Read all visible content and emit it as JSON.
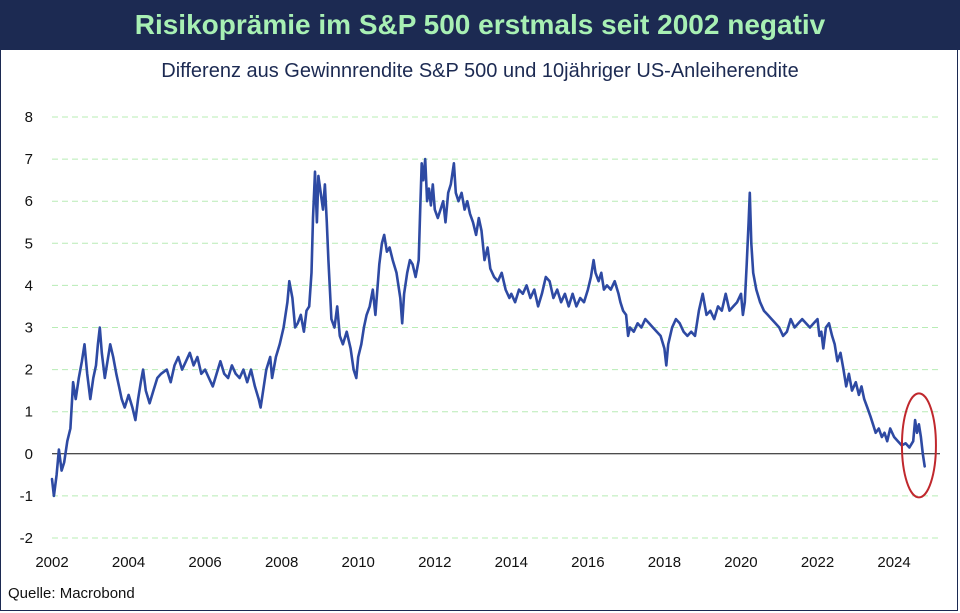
{
  "chart_data": {
    "type": "line",
    "title": "Risikoprämie im S&P 500 erstmals seit 2002 negativ",
    "subtitle": "Differenz aus Gewinnrendite S&P 500 und 10jähriger US-Anleiherendite",
    "source": "Quelle: Macrobond",
    "xlim": [
      2002,
      2025.2
    ],
    "ylim": [
      -2,
      8
    ],
    "x_ticks": [
      2002,
      2004,
      2006,
      2008,
      2010,
      2012,
      2014,
      2016,
      2018,
      2020,
      2022,
      2024
    ],
    "y_ticks": [
      -2,
      -1,
      0,
      1,
      2,
      3,
      4,
      5,
      6,
      7,
      8
    ],
    "grid": "horizontal dashed",
    "zero_line": true,
    "series": [
      {
        "color": "#2e4aa3",
        "points": [
          [
            2002.0,
            -0.6
          ],
          [
            2002.05,
            -1.0
          ],
          [
            2002.12,
            -0.5
          ],
          [
            2002.18,
            0.1
          ],
          [
            2002.25,
            -0.4
          ],
          [
            2002.32,
            -0.2
          ],
          [
            2002.4,
            0.3
          ],
          [
            2002.48,
            0.6
          ],
          [
            2002.55,
            1.7
          ],
          [
            2002.62,
            1.3
          ],
          [
            2002.7,
            1.8
          ],
          [
            2002.78,
            2.2
          ],
          [
            2002.85,
            2.6
          ],
          [
            2002.92,
            1.9
          ],
          [
            2003.0,
            1.3
          ],
          [
            2003.08,
            1.8
          ],
          [
            2003.15,
            2.1
          ],
          [
            2003.2,
            2.6
          ],
          [
            2003.25,
            3.0
          ],
          [
            2003.3,
            2.4
          ],
          [
            2003.38,
            1.8
          ],
          [
            2003.45,
            2.2
          ],
          [
            2003.52,
            2.6
          ],
          [
            2003.6,
            2.3
          ],
          [
            2003.68,
            1.9
          ],
          [
            2003.75,
            1.6
          ],
          [
            2003.82,
            1.3
          ],
          [
            2003.9,
            1.1
          ],
          [
            2004.0,
            1.4
          ],
          [
            2004.1,
            1.1
          ],
          [
            2004.18,
            0.8
          ],
          [
            2004.25,
            1.3
          ],
          [
            2004.32,
            1.7
          ],
          [
            2004.38,
            2.0
          ],
          [
            2004.45,
            1.5
          ],
          [
            2004.55,
            1.2
          ],
          [
            2004.65,
            1.5
          ],
          [
            2004.75,
            1.8
          ],
          [
            2004.85,
            1.9
          ],
          [
            2005.0,
            2.0
          ],
          [
            2005.1,
            1.7
          ],
          [
            2005.2,
            2.1
          ],
          [
            2005.3,
            2.3
          ],
          [
            2005.4,
            2.0
          ],
          [
            2005.5,
            2.2
          ],
          [
            2005.6,
            2.4
          ],
          [
            2005.7,
            2.1
          ],
          [
            2005.8,
            2.3
          ],
          [
            2005.9,
            1.9
          ],
          [
            2006.0,
            2.0
          ],
          [
            2006.1,
            1.8
          ],
          [
            2006.2,
            1.6
          ],
          [
            2006.3,
            1.9
          ],
          [
            2006.4,
            2.2
          ],
          [
            2006.5,
            1.9
          ],
          [
            2006.6,
            1.8
          ],
          [
            2006.7,
            2.1
          ],
          [
            2006.8,
            1.9
          ],
          [
            2006.9,
            1.8
          ],
          [
            2007.0,
            2.0
          ],
          [
            2007.1,
            1.7
          ],
          [
            2007.2,
            2.0
          ],
          [
            2007.3,
            1.6
          ],
          [
            2007.4,
            1.3
          ],
          [
            2007.45,
            1.1
          ],
          [
            2007.5,
            1.4
          ],
          [
            2007.6,
            2.0
          ],
          [
            2007.7,
            2.3
          ],
          [
            2007.75,
            1.8
          ],
          [
            2007.85,
            2.3
          ],
          [
            2007.95,
            2.6
          ],
          [
            2008.05,
            3.0
          ],
          [
            2008.15,
            3.6
          ],
          [
            2008.2,
            4.1
          ],
          [
            2008.28,
            3.7
          ],
          [
            2008.35,
            3.0
          ],
          [
            2008.42,
            3.1
          ],
          [
            2008.5,
            3.3
          ],
          [
            2008.58,
            2.9
          ],
          [
            2008.65,
            3.4
          ],
          [
            2008.72,
            3.5
          ],
          [
            2008.78,
            4.3
          ],
          [
            2008.82,
            5.6
          ],
          [
            2008.87,
            6.7
          ],
          [
            2008.92,
            5.5
          ],
          [
            2008.96,
            6.6
          ],
          [
            2009.02,
            6.2
          ],
          [
            2009.08,
            5.8
          ],
          [
            2009.13,
            6.4
          ],
          [
            2009.18,
            5.5
          ],
          [
            2009.22,
            4.6
          ],
          [
            2009.3,
            3.2
          ],
          [
            2009.38,
            3.0
          ],
          [
            2009.45,
            3.5
          ],
          [
            2009.52,
            2.8
          ],
          [
            2009.6,
            2.6
          ],
          [
            2009.7,
            2.9
          ],
          [
            2009.8,
            2.5
          ],
          [
            2009.88,
            2.0
          ],
          [
            2009.95,
            1.8
          ],
          [
            2010.0,
            2.3
          ],
          [
            2010.08,
            2.6
          ],
          [
            2010.15,
            3.0
          ],
          [
            2010.22,
            3.3
          ],
          [
            2010.3,
            3.5
          ],
          [
            2010.38,
            3.9
          ],
          [
            2010.45,
            3.3
          ],
          [
            2010.55,
            4.5
          ],
          [
            2010.62,
            5.0
          ],
          [
            2010.68,
            5.2
          ],
          [
            2010.75,
            4.8
          ],
          [
            2010.82,
            4.9
          ],
          [
            2010.9,
            4.6
          ],
          [
            2011.0,
            4.3
          ],
          [
            2011.1,
            3.7
          ],
          [
            2011.15,
            3.1
          ],
          [
            2011.2,
            3.8
          ],
          [
            2011.28,
            4.3
          ],
          [
            2011.35,
            4.6
          ],
          [
            2011.42,
            4.5
          ],
          [
            2011.5,
            4.2
          ],
          [
            2011.58,
            4.6
          ],
          [
            2011.62,
            5.8
          ],
          [
            2011.66,
            6.9
          ],
          [
            2011.7,
            6.5
          ],
          [
            2011.75,
            7.0
          ],
          [
            2011.8,
            6.0
          ],
          [
            2011.85,
            6.3
          ],
          [
            2011.9,
            5.9
          ],
          [
            2011.95,
            6.4
          ],
          [
            2012.0,
            5.8
          ],
          [
            2012.08,
            5.6
          ],
          [
            2012.15,
            5.8
          ],
          [
            2012.22,
            6.0
          ],
          [
            2012.28,
            5.5
          ],
          [
            2012.35,
            6.2
          ],
          [
            2012.42,
            6.4
          ],
          [
            2012.5,
            6.9
          ],
          [
            2012.55,
            6.2
          ],
          [
            2012.62,
            6.0
          ],
          [
            2012.7,
            6.2
          ],
          [
            2012.78,
            5.8
          ],
          [
            2012.85,
            6.0
          ],
          [
            2012.92,
            5.7
          ],
          [
            2013.0,
            5.5
          ],
          [
            2013.08,
            5.2
          ],
          [
            2013.15,
            5.6
          ],
          [
            2013.22,
            5.3
          ],
          [
            2013.3,
            4.6
          ],
          [
            2013.38,
            4.9
          ],
          [
            2013.45,
            4.4
          ],
          [
            2013.55,
            4.2
          ],
          [
            2013.65,
            4.1
          ],
          [
            2013.75,
            4.3
          ],
          [
            2013.85,
            3.9
          ],
          [
            2013.95,
            3.7
          ],
          [
            2014.0,
            3.8
          ],
          [
            2014.1,
            3.6
          ],
          [
            2014.2,
            3.9
          ],
          [
            2014.3,
            3.8
          ],
          [
            2014.4,
            4.0
          ],
          [
            2014.5,
            3.7
          ],
          [
            2014.6,
            3.9
          ],
          [
            2014.7,
            3.5
          ],
          [
            2014.8,
            3.8
          ],
          [
            2014.9,
            4.2
          ],
          [
            2015.0,
            4.1
          ],
          [
            2015.1,
            3.7
          ],
          [
            2015.2,
            3.9
          ],
          [
            2015.3,
            3.6
          ],
          [
            2015.4,
            3.8
          ],
          [
            2015.5,
            3.5
          ],
          [
            2015.6,
            3.8
          ],
          [
            2015.7,
            3.5
          ],
          [
            2015.8,
            3.7
          ],
          [
            2015.9,
            3.6
          ],
          [
            2016.0,
            3.9
          ],
          [
            2016.08,
            4.2
          ],
          [
            2016.15,
            4.6
          ],
          [
            2016.2,
            4.3
          ],
          [
            2016.28,
            4.1
          ],
          [
            2016.35,
            4.3
          ],
          [
            2016.42,
            3.9
          ],
          [
            2016.5,
            4.0
          ],
          [
            2016.6,
            3.9
          ],
          [
            2016.7,
            4.1
          ],
          [
            2016.8,
            3.8
          ],
          [
            2016.85,
            3.6
          ],
          [
            2016.92,
            3.4
          ],
          [
            2017.0,
            3.3
          ],
          [
            2017.05,
            2.8
          ],
          [
            2017.1,
            3.0
          ],
          [
            2017.2,
            2.9
          ],
          [
            2017.3,
            3.1
          ],
          [
            2017.4,
            3.0
          ],
          [
            2017.5,
            3.2
          ],
          [
            2017.6,
            3.1
          ],
          [
            2017.7,
            3.0
          ],
          [
            2017.8,
            2.9
          ],
          [
            2017.9,
            2.8
          ],
          [
            2018.0,
            2.5
          ],
          [
            2018.05,
            2.1
          ],
          [
            2018.1,
            2.6
          ],
          [
            2018.2,
            3.0
          ],
          [
            2018.3,
            3.2
          ],
          [
            2018.4,
            3.1
          ],
          [
            2018.5,
            2.9
          ],
          [
            2018.6,
            2.8
          ],
          [
            2018.7,
            2.9
          ],
          [
            2018.8,
            2.8
          ],
          [
            2018.9,
            3.4
          ],
          [
            2019.0,
            3.8
          ],
          [
            2019.1,
            3.3
          ],
          [
            2019.2,
            3.4
          ],
          [
            2019.3,
            3.2
          ],
          [
            2019.4,
            3.5
          ],
          [
            2019.5,
            3.4
          ],
          [
            2019.6,
            3.8
          ],
          [
            2019.65,
            3.6
          ],
          [
            2019.7,
            3.4
          ],
          [
            2019.8,
            3.5
          ],
          [
            2019.9,
            3.6
          ],
          [
            2020.0,
            3.8
          ],
          [
            2020.05,
            3.3
          ],
          [
            2020.1,
            3.6
          ],
          [
            2020.15,
            4.5
          ],
          [
            2020.2,
            5.5
          ],
          [
            2020.23,
            6.2
          ],
          [
            2020.27,
            5.0
          ],
          [
            2020.32,
            4.3
          ],
          [
            2020.4,
            3.9
          ],
          [
            2020.5,
            3.6
          ],
          [
            2020.6,
            3.4
          ],
          [
            2020.7,
            3.3
          ],
          [
            2020.8,
            3.2
          ],
          [
            2020.9,
            3.1
          ],
          [
            2021.0,
            3.0
          ],
          [
            2021.1,
            2.8
          ],
          [
            2021.2,
            2.9
          ],
          [
            2021.3,
            3.2
          ],
          [
            2021.4,
            3.0
          ],
          [
            2021.5,
            3.1
          ],
          [
            2021.6,
            3.2
          ],
          [
            2021.7,
            3.1
          ],
          [
            2021.8,
            3.0
          ],
          [
            2021.9,
            3.1
          ],
          [
            2022.0,
            3.2
          ],
          [
            2022.05,
            2.8
          ],
          [
            2022.1,
            2.9
          ],
          [
            2022.15,
            2.5
          ],
          [
            2022.22,
            3.0
          ],
          [
            2022.3,
            3.1
          ],
          [
            2022.38,
            2.8
          ],
          [
            2022.45,
            2.6
          ],
          [
            2022.52,
            2.2
          ],
          [
            2022.6,
            2.4
          ],
          [
            2022.68,
            2.0
          ],
          [
            2022.75,
            1.6
          ],
          [
            2022.82,
            1.9
          ],
          [
            2022.9,
            1.5
          ],
          [
            2023.0,
            1.7
          ],
          [
            2023.08,
            1.4
          ],
          [
            2023.15,
            1.6
          ],
          [
            2023.22,
            1.3
          ],
          [
            2023.3,
            1.1
          ],
          [
            2023.38,
            0.9
          ],
          [
            2023.45,
            0.7
          ],
          [
            2023.52,
            0.5
          ],
          [
            2023.6,
            0.6
          ],
          [
            2023.68,
            0.4
          ],
          [
            2023.75,
            0.5
          ],
          [
            2023.82,
            0.3
          ],
          [
            2023.9,
            0.6
          ],
          [
            2024.0,
            0.4
          ],
          [
            2024.1,
            0.3
          ],
          [
            2024.2,
            0.2
          ],
          [
            2024.3,
            0.25
          ],
          [
            2024.4,
            0.15
          ],
          [
            2024.5,
            0.3
          ],
          [
            2024.55,
            0.8
          ],
          [
            2024.6,
            0.5
          ],
          [
            2024.65,
            0.7
          ],
          [
            2024.7,
            0.4
          ],
          [
            2024.75,
            0.0
          ],
          [
            2024.8,
            -0.3
          ]
        ]
      }
    ],
    "highlight": {
      "type": "ellipse",
      "color": "#c0282d"
    }
  },
  "colors": {
    "title_bg": "#1c2a52",
    "title_text": "#a8f0b4",
    "grid": "#b8ecb5",
    "line": "#2e4aa3"
  }
}
